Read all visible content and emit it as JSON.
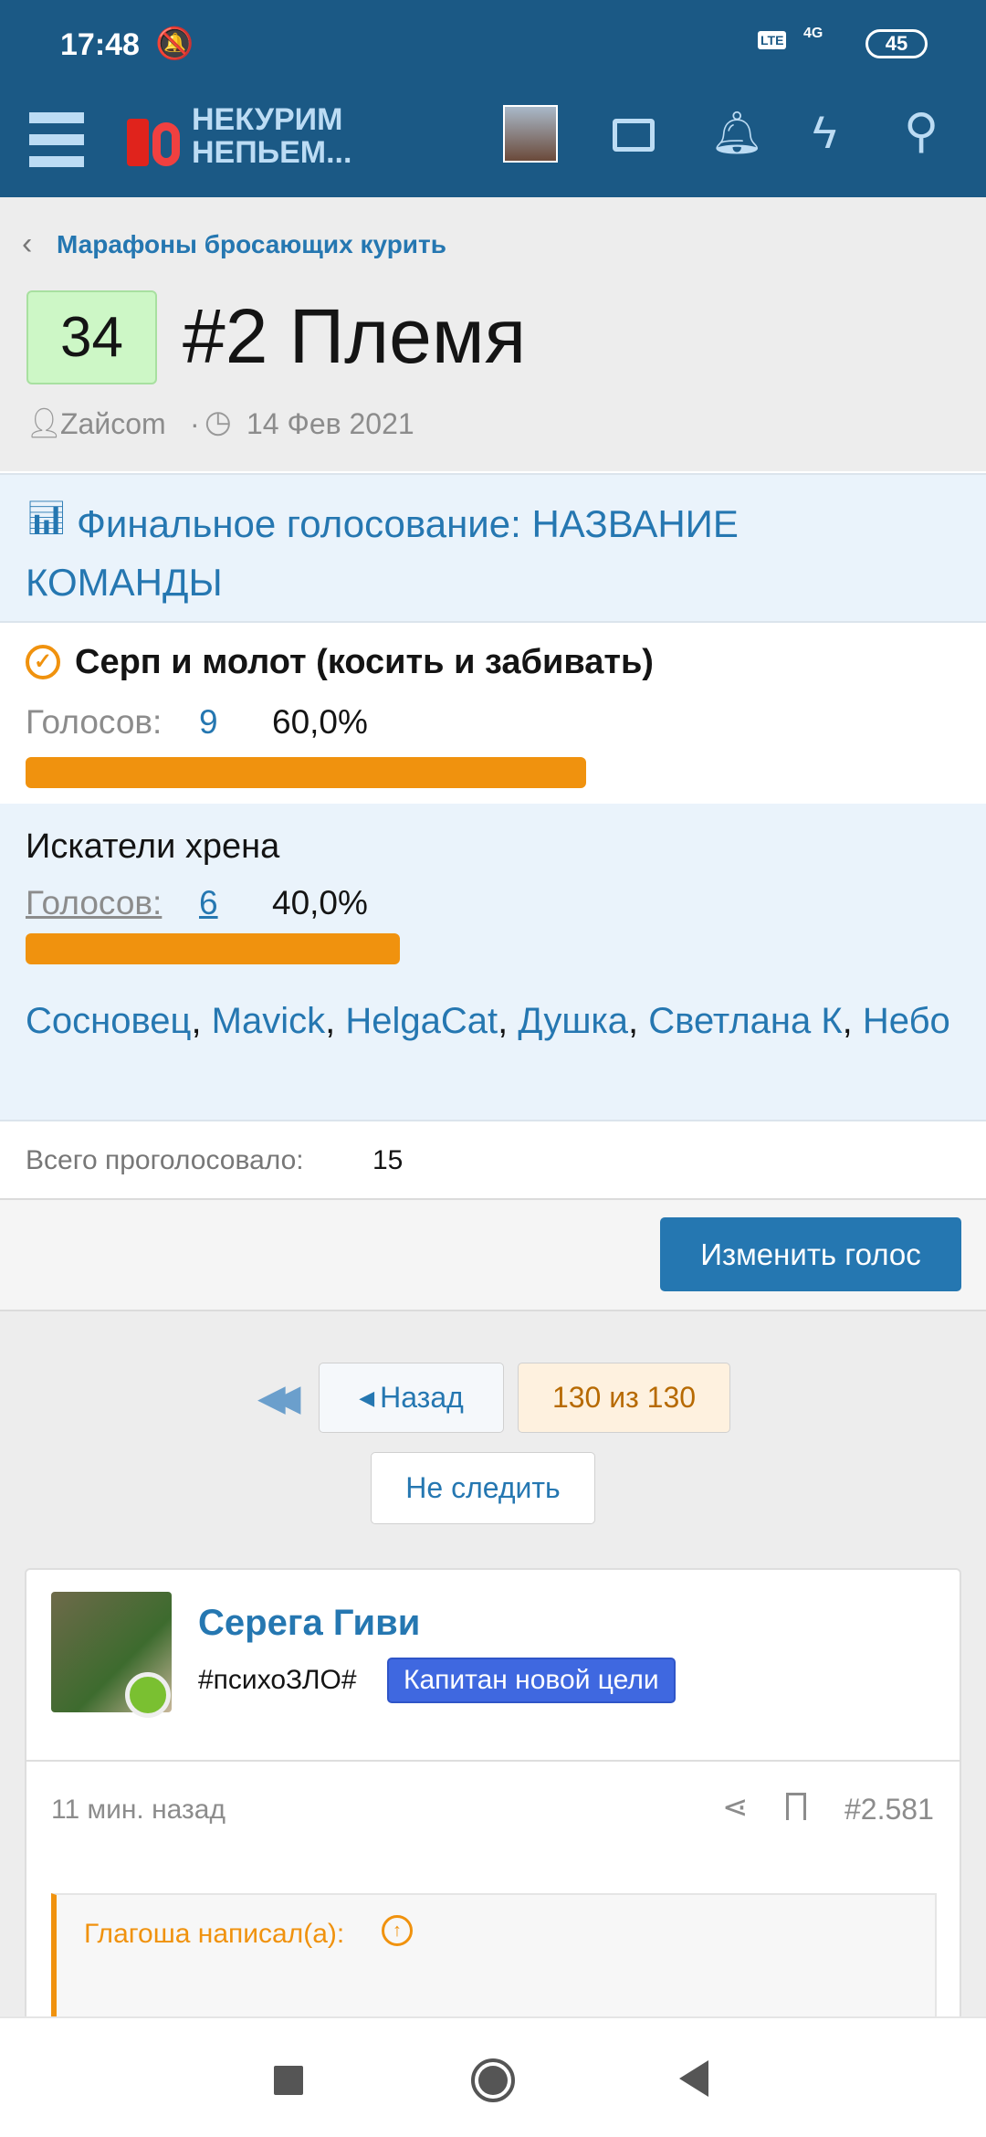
{
  "status": {
    "time": "17:48",
    "battery": "45",
    "network": "4G"
  },
  "header": {
    "logo_line1": "НЕКУРИМ",
    "logo_line2": "НЕПЬЕМ...",
    "icons": [
      "menu-icon",
      "avatar",
      "mail-icon",
      "bell-icon",
      "bolt-icon",
      "search-icon"
    ]
  },
  "breadcrumb": "Марафоны бросающих курить",
  "thread": {
    "score": "34",
    "title": "#2 Племя",
    "author": "Zaйcom",
    "date": "14 Фев 2021"
  },
  "poll": {
    "title": "Финальное голосование: НАЗВАНИЕ КОМАНДЫ",
    "votes_label": "Голосов:",
    "options": [
      {
        "label": "Серп и молот (косить и забивать)",
        "votes": "9",
        "percent": "60,0%",
        "fraction": 0.6,
        "voted": true
      },
      {
        "label": "Искатели хрена",
        "votes": "6",
        "percent": "40,0%",
        "fraction": 0.4,
        "voted": false
      }
    ],
    "voters": [
      "Сосновец",
      "Mavick",
      "HelgaCat",
      "Душка",
      "Светлана К",
      "Небо"
    ],
    "total_label": "Всего проголосовало:",
    "total": "15",
    "change_button": "Изменить голос"
  },
  "pagination": {
    "back": "Назад",
    "page": "130 из 130",
    "unwatch": "Не следить"
  },
  "post": {
    "author": "Серега Гиви",
    "user_title": "#психоЗЛО#",
    "badge": "Капитан новой цели",
    "time": "11 мин. назад",
    "number": "#2.581",
    "quote_author": "Глагоша написал(а):"
  },
  "colors": {
    "header": "#1b5985",
    "link": "#2577b1",
    "bar": "#f0920e",
    "badge": "#3f68e0"
  }
}
